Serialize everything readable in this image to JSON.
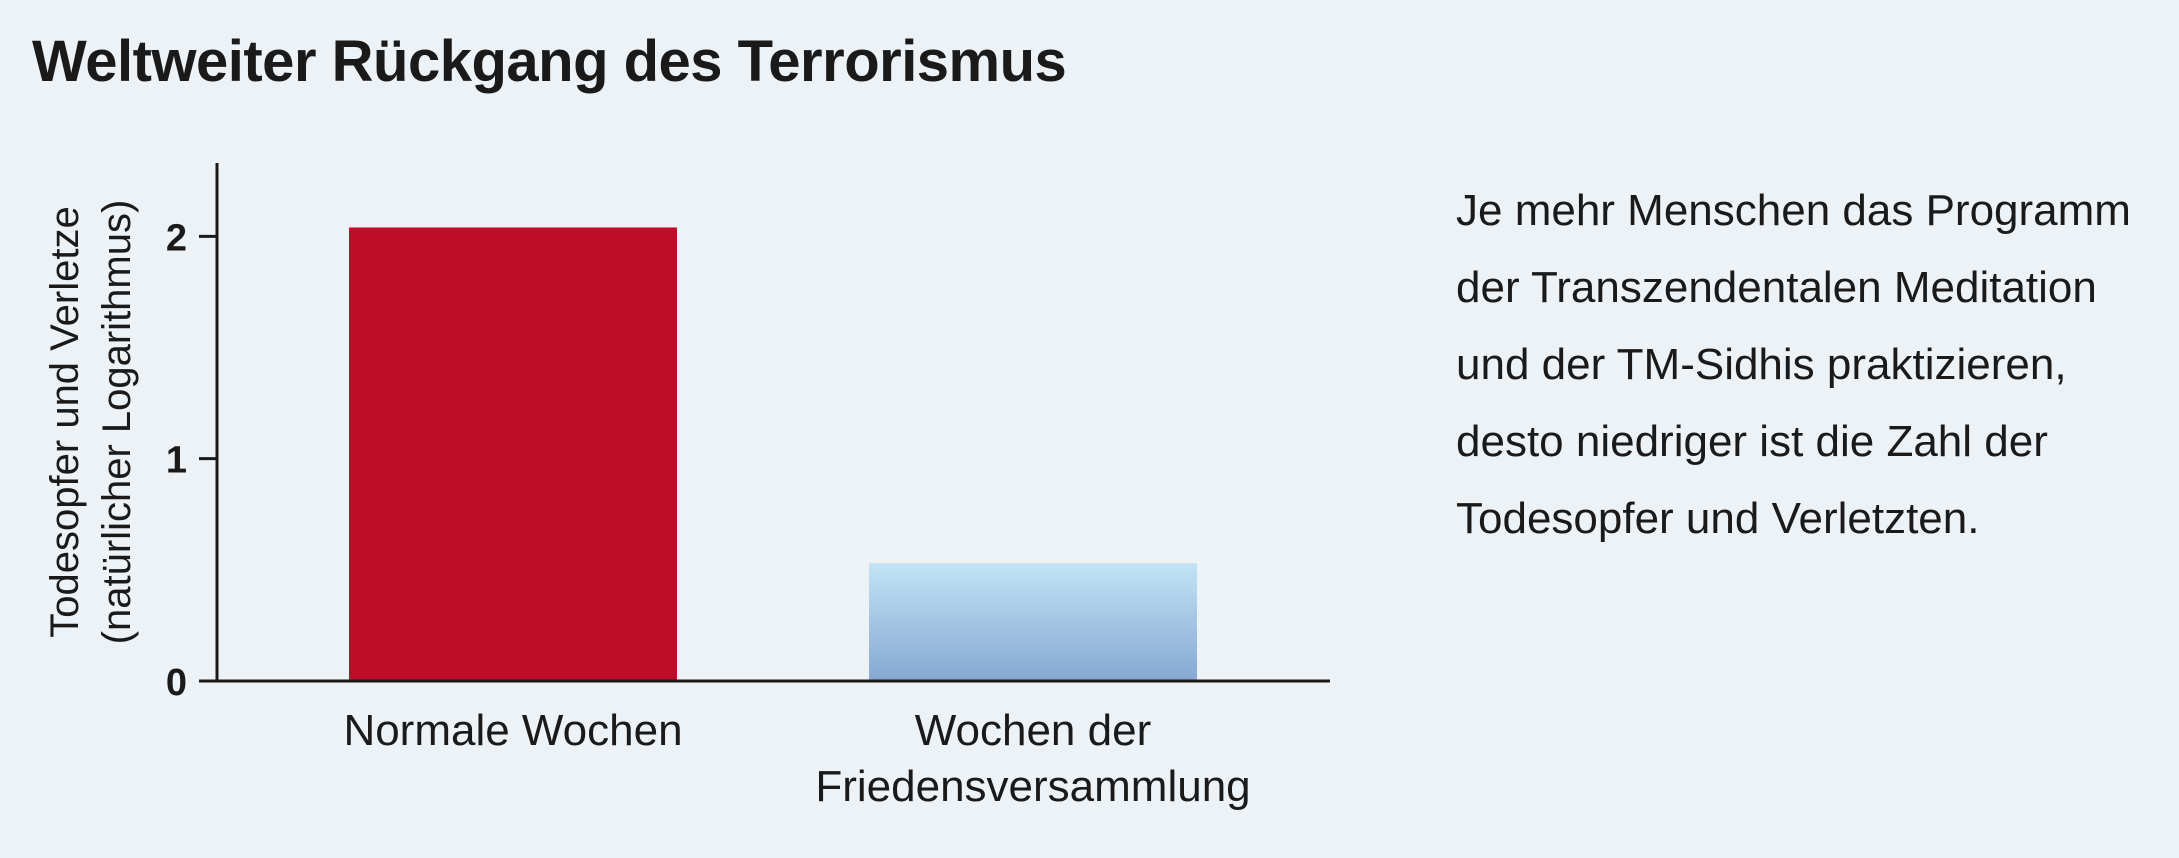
{
  "title": "Weltweiter Rückgang des Terrorismus",
  "description": "Je mehr Menschen das Programm der Transzendentalen Meditation und der TM-Sidhis praktizieren, desto niedriger ist die Zahl der Todesopfer und Verletzten.",
  "chart_data": {
    "type": "bar",
    "categories": [
      [
        "Normale Wochen"
      ],
      [
        "Wochen der",
        "Friedensversammlung"
      ]
    ],
    "values": [
      2.04,
      0.53
    ],
    "ylabel": [
      "Todesopfer und Verletze",
      "(natürlicher Logarithmus)"
    ],
    "yticks": [
      0,
      1,
      2
    ],
    "ylim": [
      0,
      2.33
    ],
    "grid": false,
    "colors": {
      "bar_normal": "#bd0d29",
      "bar_peace_top": "#c2e3f4",
      "bar_peace_bottom": "#86a8d3",
      "axis": "#1a1a1a",
      "background": "#edf2f6"
    }
  }
}
